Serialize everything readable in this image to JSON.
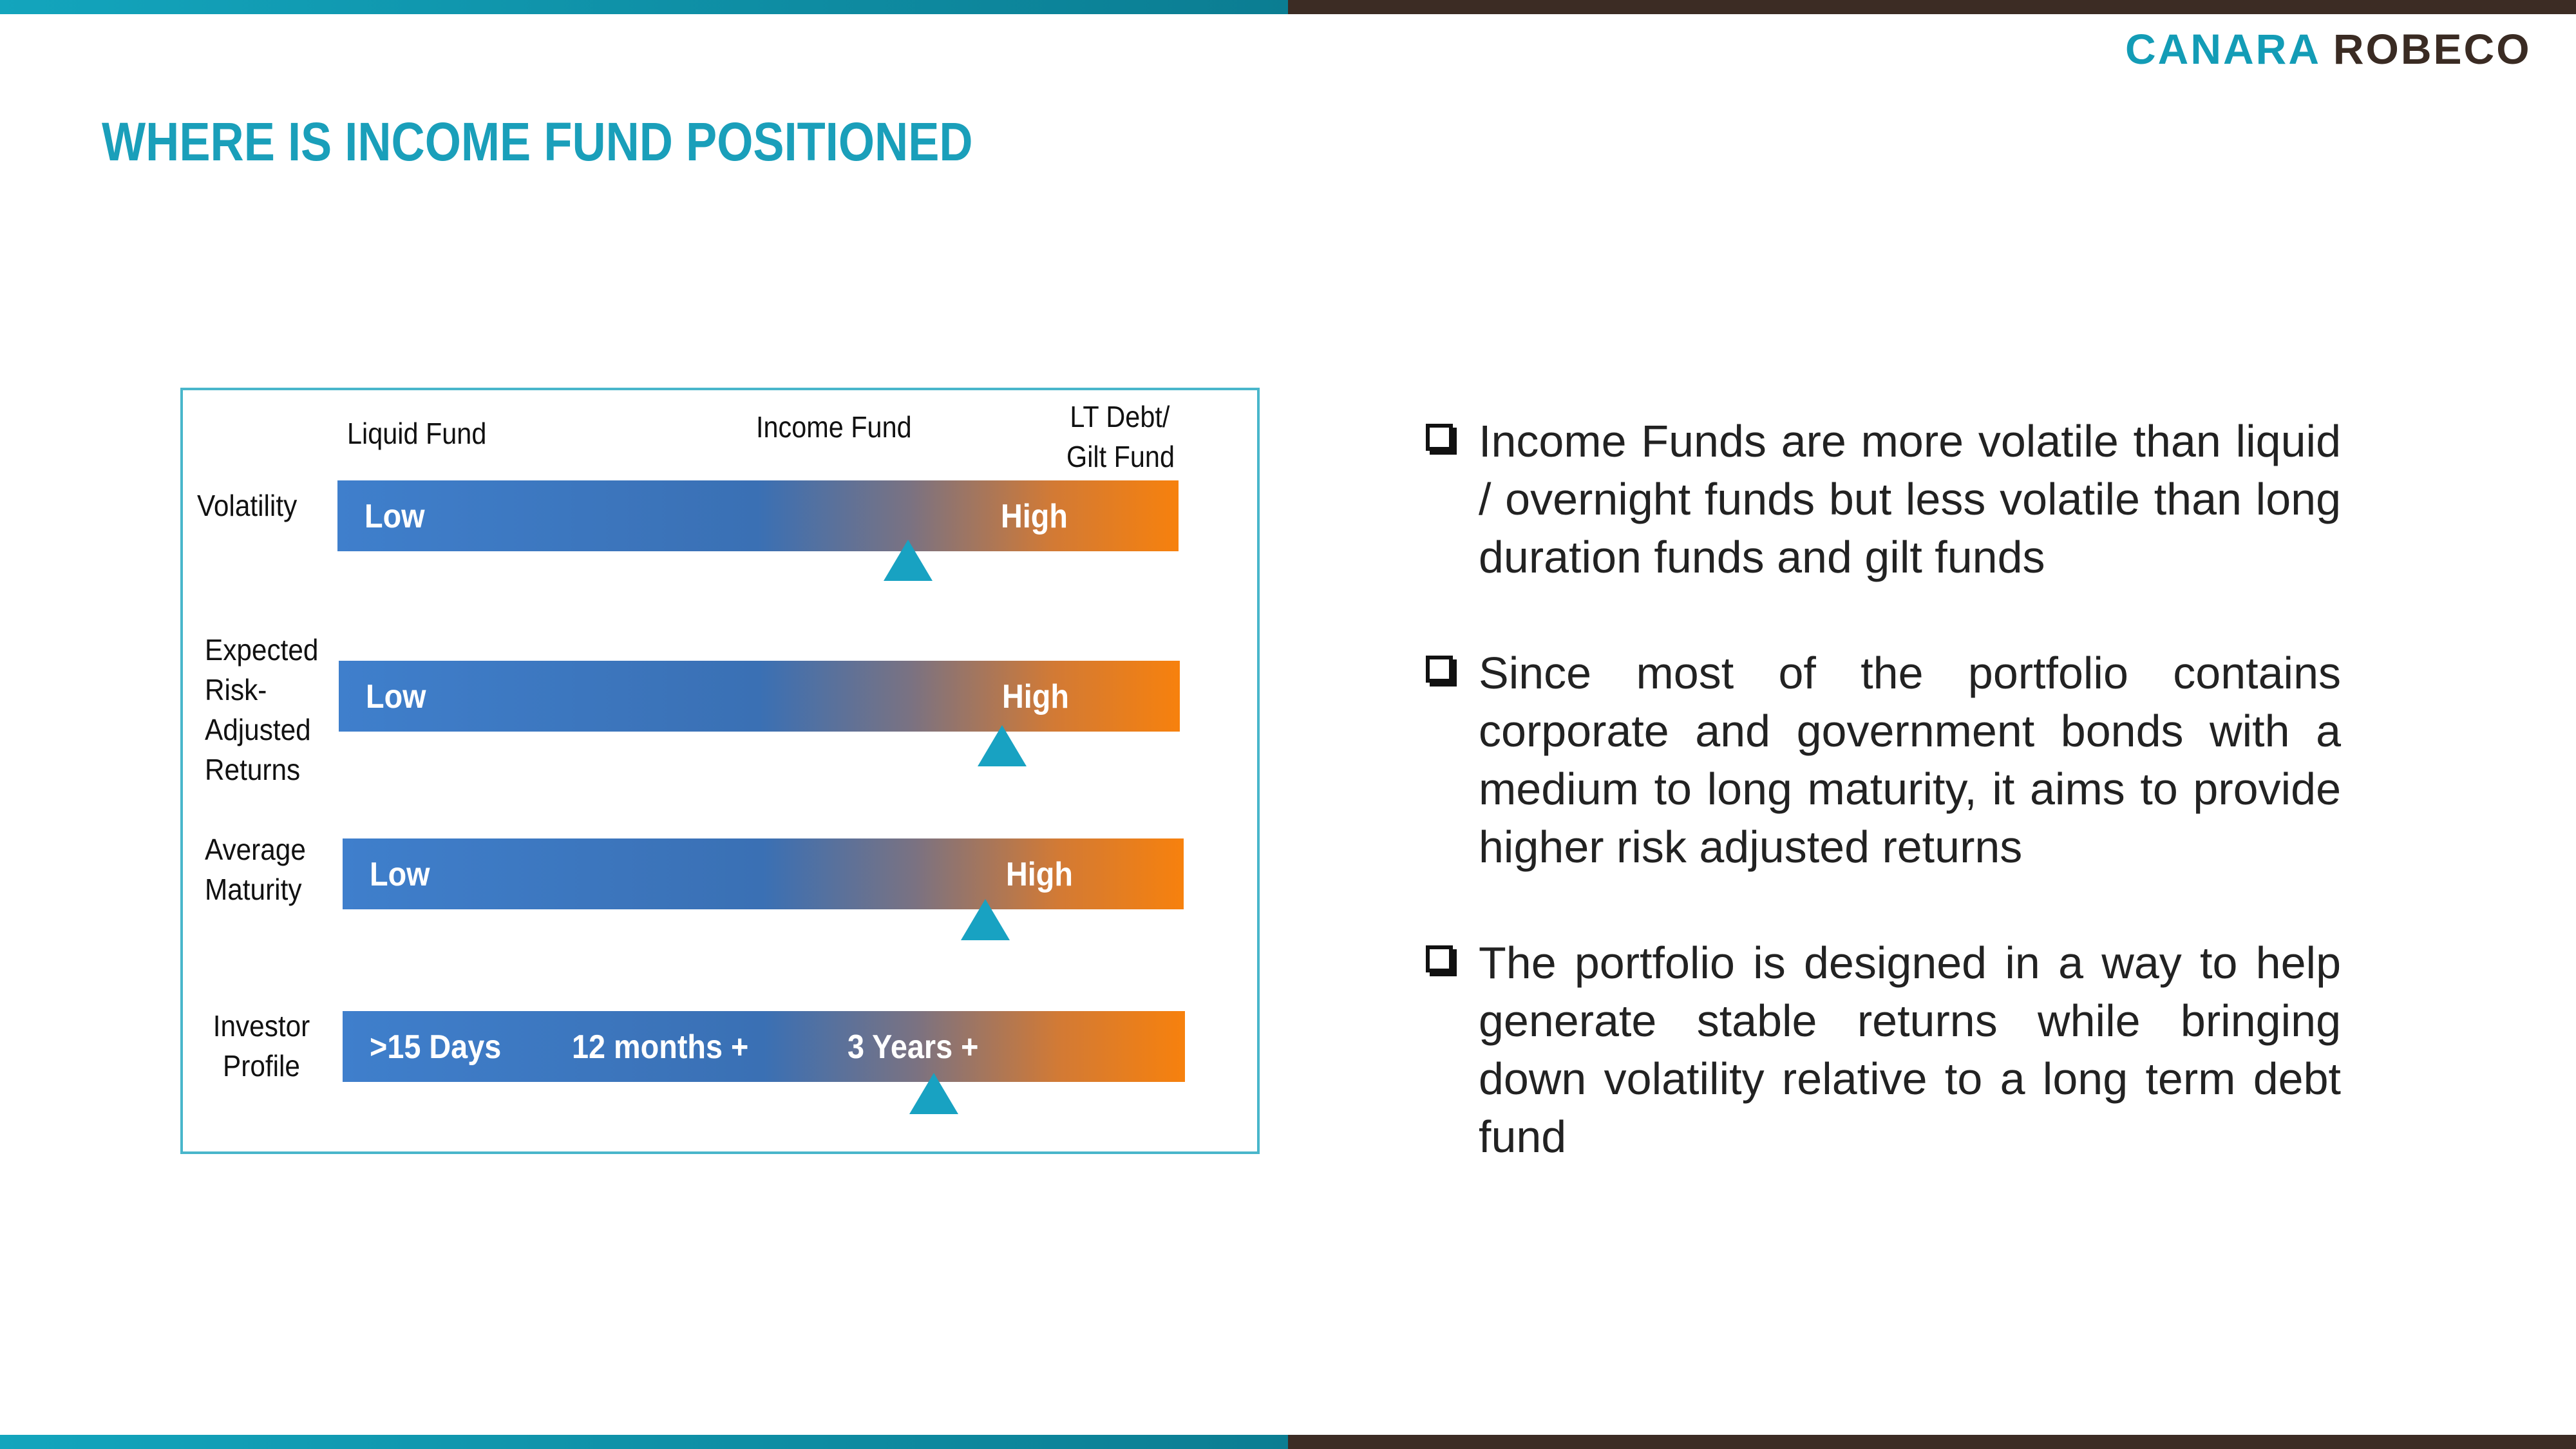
{
  "brand": {
    "word1": "CANARA",
    "word2": "ROBECO",
    "accent": "#139cb6",
    "dark": "#3a2b23"
  },
  "title": "WHERE IS INCOME FUND POSITIONED",
  "diagram": {
    "columns": {
      "liquid": "Liquid Fund",
      "income": "Income Fund",
      "lt_debt_1": "LT Debt/",
      "lt_debt_2": "Gilt Fund"
    },
    "rows": [
      {
        "label_lines": [
          "Volatility"
        ],
        "low": "Low",
        "high": "High",
        "marker": "income fund position"
      },
      {
        "label_lines": [
          "Expected",
          "Risk-",
          "Adjusted",
          "Returns"
        ],
        "low": "Low",
        "high": "High"
      },
      {
        "label_lines": [
          "Average",
          "Maturity"
        ],
        "low": "Low",
        "high": "High"
      },
      {
        "label_lines": [
          "Investor",
          "Profile"
        ],
        "t1": ">15 Days",
        "t2": "12 months +",
        "t3": "3 Years +"
      }
    ],
    "marker_color": "#18a2c2",
    "bar_colors": {
      "start": "#3f7fcc",
      "end": "#f7810d"
    }
  },
  "bullets": [
    "Income Funds are more volatile than liquid / overnight funds but less volatile than long duration funds and gilt funds",
    "Since most of the portfolio contains corporate and government bonds with a medium to long maturity, it aims to provide higher risk adjusted returns",
    "The portfolio is designed in a way to help generate stable returns while bringing down volatility relative to a long term debt fund"
  ]
}
